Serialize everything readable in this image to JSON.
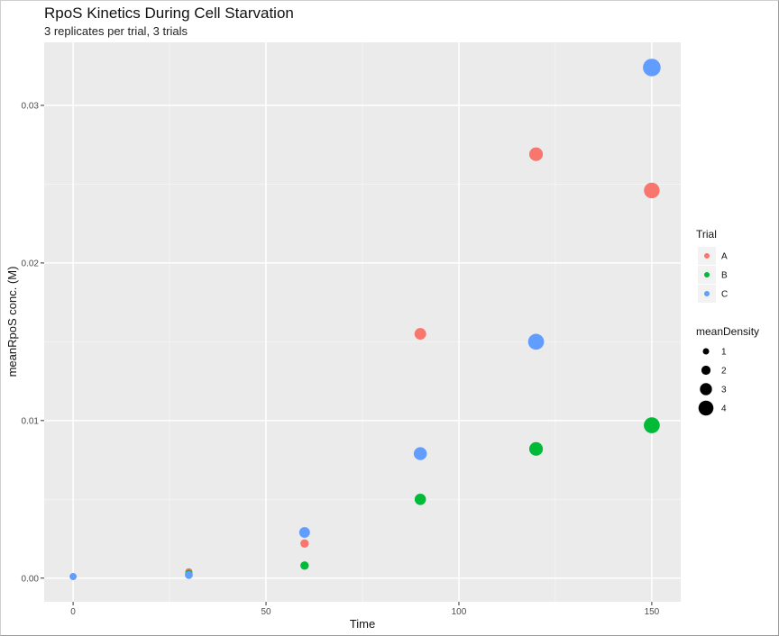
{
  "chart_data": {
    "type": "scatter",
    "title": "RpoS Kinetics During Cell Starvation",
    "subtitle": "3 replicates per trial, 3 trials",
    "xlabel": "Time",
    "ylabel": "meanRpoS conc. (M)",
    "xlim": [
      -7.5,
      157.5
    ],
    "ylim": [
      -0.0015,
      0.034
    ],
    "x_ticks": [
      0,
      50,
      100,
      150
    ],
    "x_tick_labels": [
      "0",
      "50",
      "100",
      "150"
    ],
    "y_ticks": [
      0.0,
      0.01,
      0.02,
      0.03
    ],
    "y_tick_labels": [
      "0.00",
      "0.01",
      "0.02",
      "0.03"
    ],
    "grid": true,
    "legend_position": "right",
    "color_legend": {
      "title": "Trial",
      "entries": [
        {
          "label": "A",
          "color": "#F8766D"
        },
        {
          "label": "B",
          "color": "#00BA38"
        },
        {
          "label": "C",
          "color": "#619CFF"
        }
      ]
    },
    "size_legend": {
      "title": "meanDensity",
      "entries": [
        {
          "label": "1",
          "value": 1
        },
        {
          "label": "2",
          "value": 2
        },
        {
          "label": "3",
          "value": 3
        },
        {
          "label": "4",
          "value": 4
        }
      ]
    },
    "series": [
      {
        "name": "A",
        "color": "#F8766D",
        "points": [
          {
            "x": 0,
            "y": 0.0001,
            "size": 0.2
          },
          {
            "x": 30,
            "y": 0.0004,
            "size": 0.4
          },
          {
            "x": 60,
            "y": 0.0022,
            "size": 0.8
          },
          {
            "x": 90,
            "y": 0.0155,
            "size": 1.9
          },
          {
            "x": 120,
            "y": 0.0269,
            "size": 2.6
          },
          {
            "x": 150,
            "y": 0.0246,
            "size": 3.3
          }
        ]
      },
      {
        "name": "B",
        "color": "#00BA38",
        "points": [
          {
            "x": 0,
            "y": 0.0001,
            "size": 0.2
          },
          {
            "x": 30,
            "y": 0.0003,
            "size": 0.4
          },
          {
            "x": 60,
            "y": 0.0008,
            "size": 0.8
          },
          {
            "x": 90,
            "y": 0.005,
            "size": 1.8
          },
          {
            "x": 120,
            "y": 0.0082,
            "size": 2.6
          },
          {
            "x": 150,
            "y": 0.0097,
            "size": 3.4
          }
        ]
      },
      {
        "name": "C",
        "color": "#619CFF",
        "points": [
          {
            "x": 0,
            "y": 0.0001,
            "size": 0.3
          },
          {
            "x": 30,
            "y": 0.0002,
            "size": 0.6
          },
          {
            "x": 60,
            "y": 0.0029,
            "size": 1.6
          },
          {
            "x": 90,
            "y": 0.0079,
            "size": 2.4
          },
          {
            "x": 120,
            "y": 0.015,
            "size": 3.4
          },
          {
            "x": 150,
            "y": 0.0324,
            "size": 4.0
          }
        ]
      }
    ]
  }
}
